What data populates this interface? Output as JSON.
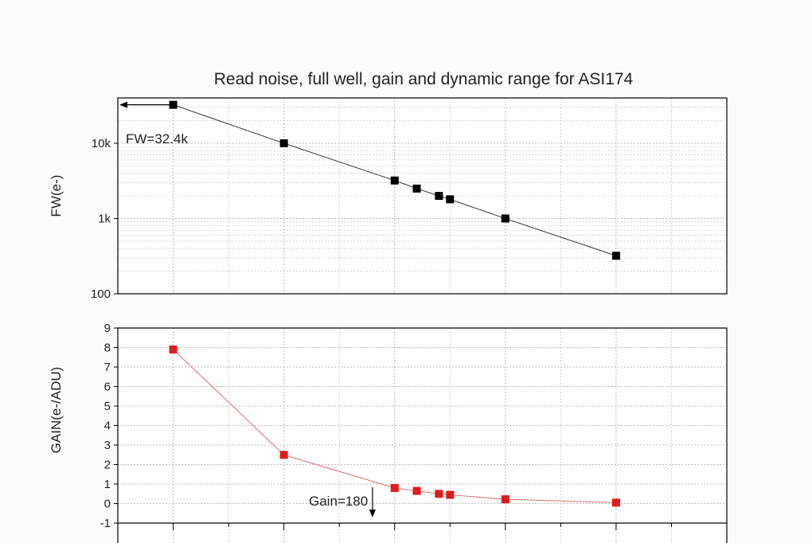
{
  "chart_data": {
    "title": "Read noise, full well, gain and dynamic range for ASI174",
    "colors": {
      "fw_series": "#000000",
      "gain_series": "#e01b1b",
      "gain_line": "#d9716f",
      "grid": "#b9b9b9"
    },
    "x": [
      0,
      100,
      200,
      220,
      240,
      250,
      300,
      400
    ],
    "xlim": [
      -50,
      500
    ],
    "panels": [
      {
        "id": "fw",
        "type": "line",
        "ylabel": "FW(e-)",
        "yscale": "log",
        "ylim": [
          100,
          40000
        ],
        "yticks": [
          100,
          1000,
          10000
        ],
        "yticklabels": [
          "100",
          "1k",
          "10k"
        ],
        "series": [
          {
            "values": [
              32400,
              10000,
              3200,
              2500,
              2000,
              1800,
              1000,
              320
            ]
          }
        ],
        "annotation": {
          "text": "FW=32.4k",
          "arrow": "left",
          "at_value": 32400
        }
      },
      {
        "id": "gain",
        "type": "line",
        "ylabel": "GAIN(e-/ADU)",
        "yscale": "linear",
        "ylim": [
          -1,
          9
        ],
        "yticks": [
          -1,
          0,
          1,
          2,
          3,
          4,
          5,
          6,
          7,
          8,
          9
        ],
        "yticklabels": [
          "-1",
          "0",
          "1",
          "2",
          "3",
          "4",
          "5",
          "6",
          "7",
          "8",
          "9"
        ],
        "series": [
          {
            "values": [
              7.9,
              2.5,
              0.8,
              0.65,
              0.5,
              0.45,
              0.22,
              0.05
            ]
          }
        ],
        "annotation": {
          "text": "Gain=180",
          "arrow": "down",
          "at_x": 180
        }
      }
    ]
  }
}
